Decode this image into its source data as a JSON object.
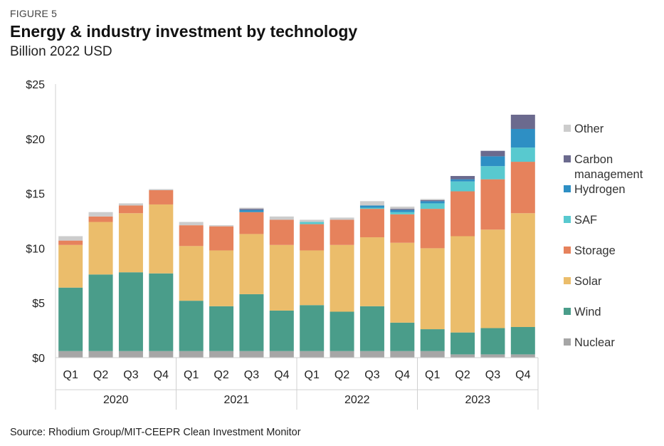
{
  "figure_label": "FIGURE 5",
  "title": "Energy & industry investment by technology",
  "subtitle": "Billion 2022 USD",
  "source": "Source: Rhodium Group/MIT-CEEPR Clean Investment Monitor",
  "chart_data": {
    "type": "bar",
    "stacked": true,
    "categories": [
      "Q1",
      "Q2",
      "Q3",
      "Q4",
      "Q1",
      "Q2",
      "Q3",
      "Q4",
      "Q1",
      "Q2",
      "Q3",
      "Q4",
      "Q1",
      "Q2",
      "Q3",
      "Q4"
    ],
    "groups": [
      {
        "label": "2020",
        "count": 4
      },
      {
        "label": "2021",
        "count": 4
      },
      {
        "label": "2022",
        "count": 4
      },
      {
        "label": "2023",
        "count": 4
      }
    ],
    "ylim": [
      0,
      25
    ],
    "yticks": [
      0,
      5,
      10,
      15,
      20,
      25
    ],
    "ytick_labels": [
      "$0",
      "$5",
      "$10",
      "$15",
      "$20",
      "$25"
    ],
    "legend_position": "right",
    "grid": false,
    "series": [
      {
        "name": "Nuclear",
        "color": "#a6a6a6",
        "values": [
          0.6,
          0.6,
          0.6,
          0.6,
          0.6,
          0.6,
          0.6,
          0.6,
          0.6,
          0.6,
          0.6,
          0.6,
          0.6,
          0.3,
          0.3,
          0.3
        ]
      },
      {
        "name": "Wind",
        "color": "#4a9d8a",
        "values": [
          5.8,
          7.0,
          7.2,
          7.1,
          4.6,
          4.1,
          5.2,
          3.7,
          4.2,
          3.6,
          4.1,
          2.6,
          2.0,
          2.0,
          2.4,
          2.5
        ]
      },
      {
        "name": "Solar",
        "color": "#ebbd6b",
        "values": [
          3.9,
          4.8,
          5.4,
          6.3,
          5.0,
          5.1,
          5.5,
          6.0,
          5.0,
          6.1,
          6.3,
          7.3,
          7.4,
          8.8,
          9.0,
          10.4
        ]
      },
      {
        "name": "Storage",
        "color": "#e6825c",
        "values": [
          0.4,
          0.5,
          0.7,
          1.3,
          1.9,
          2.2,
          2.0,
          2.3,
          2.4,
          2.3,
          2.6,
          2.6,
          3.6,
          4.1,
          4.6,
          4.7
        ]
      },
      {
        "name": "SAF",
        "color": "#58c9cf",
        "values": [
          0,
          0,
          0,
          0,
          0,
          0,
          0,
          0,
          0.2,
          0,
          0.1,
          0.2,
          0.5,
          0.9,
          1.2,
          1.3
        ]
      },
      {
        "name": "Hydrogen",
        "color": "#2e8fc4",
        "values": [
          0,
          0,
          0,
          0,
          0,
          0,
          0.2,
          0,
          0,
          0,
          0.2,
          0.2,
          0.2,
          0.2,
          0.9,
          1.7
        ]
      },
      {
        "name": "Carbon management",
        "color": "#6b6a8e",
        "values": [
          0,
          0,
          0,
          0,
          0,
          0,
          0.1,
          0,
          0,
          0,
          0,
          0.1,
          0.1,
          0.3,
          0.5,
          1.3
        ]
      },
      {
        "name": "Other",
        "color": "#cccccc",
        "values": [
          0.4,
          0.4,
          0.2,
          0.1,
          0.3,
          0.1,
          0.1,
          0.3,
          0.2,
          0.2,
          0.4,
          0.2,
          0.1,
          0,
          0,
          0
        ]
      }
    ],
    "legend_order": [
      "Other",
      "Carbon management",
      "Hydrogen",
      "SAF",
      "Storage",
      "Solar",
      "Wind",
      "Nuclear"
    ],
    "legend_lines": {
      "Other": [
        "Other"
      ],
      "Carbon management": [
        "Carbon",
        "management"
      ],
      "Hydrogen": [
        "Hydrogen"
      ],
      "SAF": [
        "SAF"
      ],
      "Storage": [
        "Storage"
      ],
      "Solar": [
        "Solar"
      ],
      "Wind": [
        "Wind"
      ],
      "Nuclear": [
        "Nuclear"
      ]
    }
  }
}
